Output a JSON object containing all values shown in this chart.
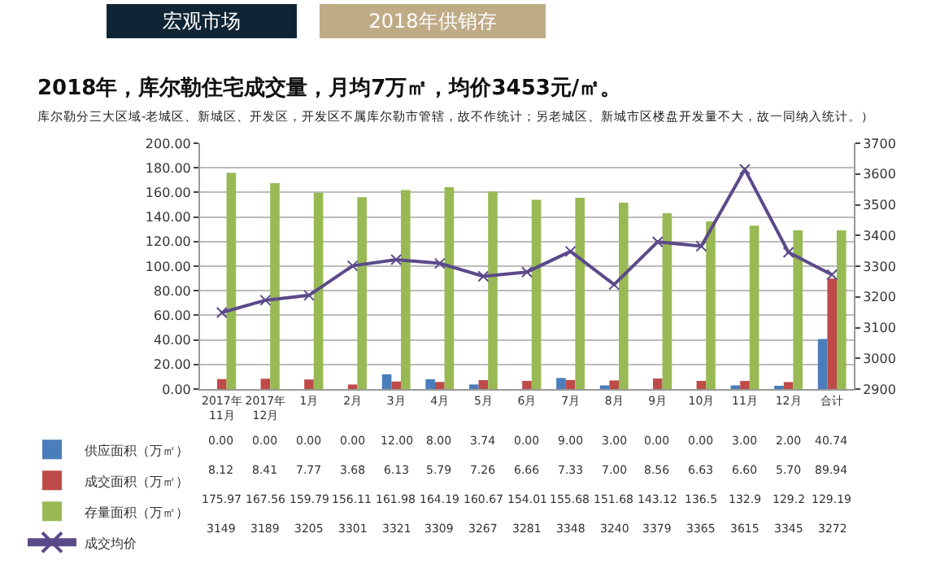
{
  "chart_data": {
    "type": "bar",
    "title": "2018年，库尔勒住宅成交量，月均7万㎡，均价3453元/㎡。",
    "subtitle": "库尔勒分三大区域-老城区、新城区、开发区，开发区不属库尔勒市管辖，故不作统计；另老城区、新城市区楼盘开发量不大，故一同纳入统计。）",
    "annotations": [
      "宏观市场",
      "2018年供销存"
    ],
    "categories": [
      "2017年11月",
      "2017年12月",
      "1月",
      "2月",
      "3月",
      "4月",
      "5月",
      "6月",
      "7月",
      "8月",
      "9月",
      "10月",
      "11月",
      "12月",
      "合计"
    ],
    "series": [
      {
        "name": "供应面积（万㎡）",
        "color": "#4a7ebb",
        "values": [
          0,
          0,
          0,
          0,
          12,
          8,
          3.74,
          0,
          9,
          3,
          0,
          0,
          3,
          2,
          40.74
        ],
        "value_labels": [
          "0.00",
          "0.00",
          "0.00",
          "0.00",
          "12.00",
          "8.00",
          "3.74",
          "0.00",
          "9.00",
          "3.00",
          "0.00",
          "0.00",
          "3.00",
          "2.00",
          "40.74"
        ]
      },
      {
        "name": "成交面积（万㎡）",
        "color": "#be4b48",
        "values": [
          8.12,
          8.41,
          7.77,
          3.68,
          6.13,
          5.79,
          7.26,
          6.66,
          7.33,
          7,
          8.56,
          6.63,
          6.6,
          5.7,
          89.94
        ],
        "value_labels": [
          "8.12",
          "8.41",
          "7.77",
          "3.68",
          "6.13",
          "5.79",
          "7.26",
          "6.66",
          "7.33",
          "7.00",
          "8.56",
          "6.63",
          "6.60",
          "5.70",
          "89.94"
        ]
      },
      {
        "name": "存量面积（万㎡）",
        "color": "#98b954",
        "values": [
          175.97,
          167.56,
          159.79,
          156.11,
          161.98,
          164.19,
          160.67,
          154.01,
          155.68,
          151.68,
          143.12,
          136.5,
          132.9,
          129.2,
          129.19
        ],
        "value_labels": [
          "175.97",
          "167.56",
          "159.79",
          "156.11",
          "161.98",
          "164.19",
          "160.67",
          "154.01",
          "155.68",
          "151.68",
          "143.12",
          "136.5",
          "132.9",
          "129.2",
          "129.19"
        ]
      },
      {
        "name": "成交均价",
        "type": "line",
        "axis": "y2",
        "marker": "cross",
        "color": "#5b4a8a",
        "values": [
          3149,
          3189,
          3205,
          3301,
          3321,
          3309,
          3267,
          3281,
          3348,
          3240,
          3379,
          3365,
          3615,
          3345,
          3272
        ],
        "value_labels": [
          "3149",
          "3189",
          "3205",
          "3301",
          "3321",
          "3309",
          "3267",
          "3281",
          "3348",
          "3240",
          "3379",
          "3365",
          "3615",
          "3345",
          "3272"
        ]
      }
    ],
    "ylim": [
      0,
      200
    ],
    "yticks": [
      {
        "value": 0,
        "label": "0.00"
      },
      {
        "value": 20,
        "label": "20.00"
      },
      {
        "value": 40,
        "label": "40.00"
      },
      {
        "value": 60,
        "label": "60.00"
      },
      {
        "value": 80,
        "label": "80.00"
      },
      {
        "value": 100,
        "label": "100.00"
      },
      {
        "value": 120,
        "label": "120.00"
      },
      {
        "value": 140,
        "label": "140.00"
      },
      {
        "value": 160,
        "label": "160.00"
      },
      {
        "value": 180,
        "label": "180.00"
      },
      {
        "value": 200,
        "label": "200.00"
      }
    ],
    "y2lim": [
      2900,
      3700
    ],
    "y2ticks": [
      2900,
      3000,
      3100,
      3200,
      3300,
      3400,
      3500,
      3600,
      3700
    ],
    "grid": "y",
    "legend": "bottom left"
  }
}
